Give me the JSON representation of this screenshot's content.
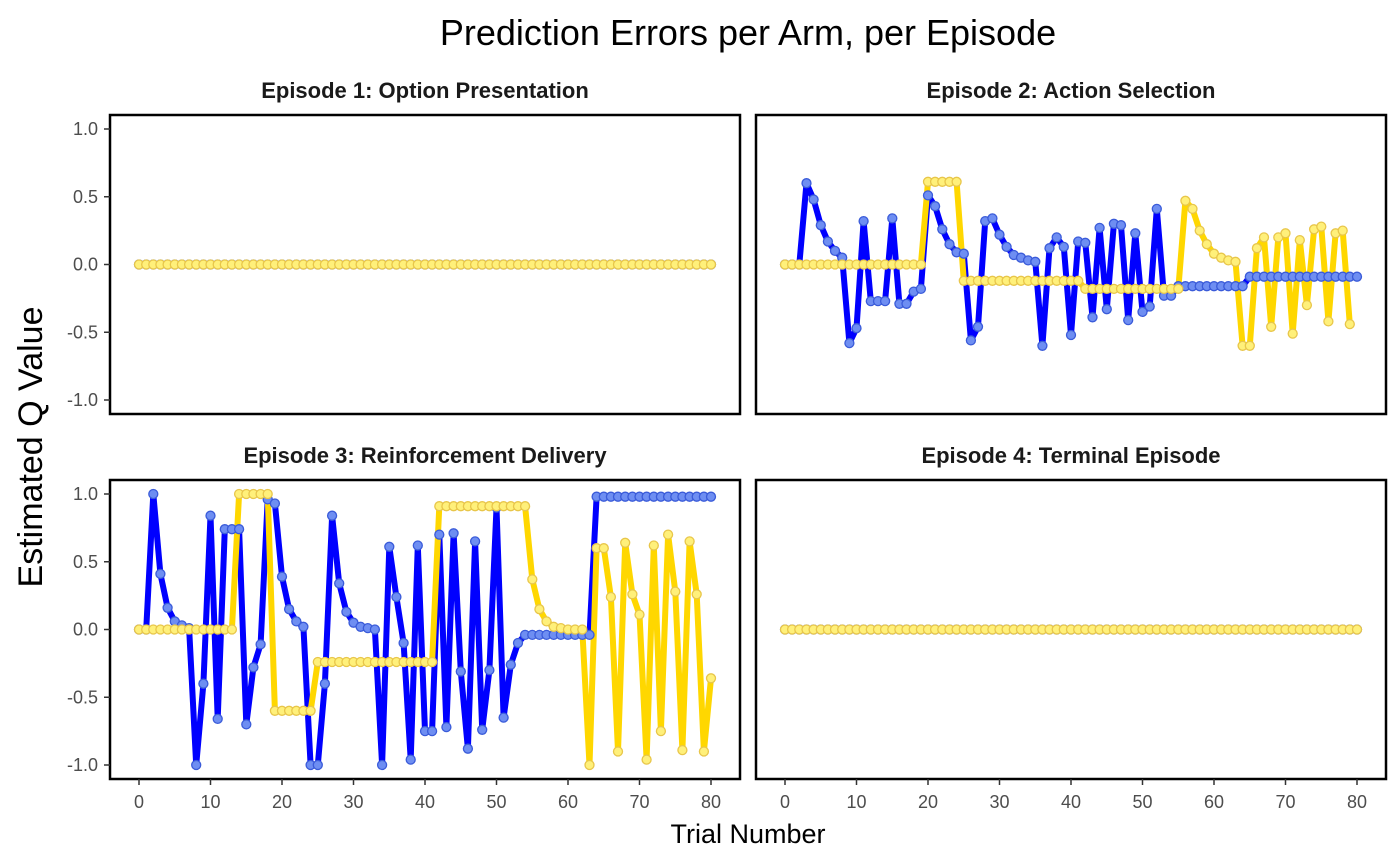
{
  "chart_data": {
    "type": "line",
    "title": "Prediction Errors per Arm, per Episode",
    "xlabel": "Trial Number",
    "ylabel": "Estimated Q Value",
    "xlim": [
      0,
      80
    ],
    "ylim": [
      -1,
      1
    ],
    "x_ticks": [
      0,
      10,
      20,
      30,
      40,
      50,
      60,
      70,
      80
    ],
    "y_ticks": [
      1.0,
      0.5,
      0.0,
      -0.5,
      -1.0
    ],
    "y_tick_labels": [
      "1.0",
      "0.5",
      "0.0",
      "-0.5",
      "-1.0"
    ],
    "grid": false,
    "legend": "none",
    "series_colors": {
      "arm1": "#0000FF",
      "arm2": "#FFD700"
    },
    "panels": [
      {
        "title": "Episode 1: Option Presentation",
        "series": [
          {
            "values": [
              0,
              0,
              0,
              0,
              0,
              0,
              0,
              0,
              0,
              0,
              0,
              0,
              0,
              0,
              0,
              0,
              0,
              0,
              0,
              0,
              0,
              0,
              0,
              0,
              0,
              0,
              0,
              0,
              0,
              0,
              0,
              0,
              0,
              0,
              0,
              0,
              0,
              0,
              0,
              0,
              0,
              0,
              0,
              0,
              0,
              0,
              0,
              0,
              0,
              0,
              0,
              0,
              0,
              0,
              0,
              0,
              0,
              0,
              0,
              0,
              0,
              0,
              0,
              0,
              0,
              0,
              0,
              0,
              0,
              0,
              0,
              0,
              0,
              0,
              0,
              0,
              0,
              0,
              0,
              0,
              0
            ]
          },
          {
            "values": [
              0,
              0,
              0,
              0,
              0,
              0,
              0,
              0,
              0,
              0,
              0,
              0,
              0,
              0,
              0,
              0,
              0,
              0,
              0,
              0,
              0,
              0,
              0,
              0,
              0,
              0,
              0,
              0,
              0,
              0,
              0,
              0,
              0,
              0,
              0,
              0,
              0,
              0,
              0,
              0,
              0,
              0,
              0,
              0,
              0,
              0,
              0,
              0,
              0,
              0,
              0,
              0,
              0,
              0,
              0,
              0,
              0,
              0,
              0,
              0,
              0,
              0,
              0,
              0,
              0,
              0,
              0,
              0,
              0,
              0,
              0,
              0,
              0,
              0,
              0,
              0,
              0,
              0,
              0,
              0,
              0
            ]
          }
        ]
      },
      {
        "title": "Episode 2: Action Selection",
        "series": [
          {
            "values": [
              0,
              0,
              0,
              0.6,
              0.48,
              0.29,
              0.17,
              0.1,
              0.05,
              -0.58,
              -0.47,
              0.32,
              -0.27,
              -0.27,
              -0.27,
              0.34,
              -0.29,
              -0.29,
              -0.2,
              -0.18,
              0.51,
              0.43,
              0.26,
              0.15,
              0.09,
              0.08,
              -0.56,
              -0.46,
              0.32,
              0.34,
              0.22,
              0.13,
              0.07,
              0.05,
              0.03,
              0.02,
              -0.6,
              0.12,
              0.2,
              0.13,
              -0.52,
              0.17,
              0.16,
              -0.39,
              0.27,
              -0.33,
              0.3,
              0.29,
              -0.41,
              0.23,
              -0.35,
              -0.31,
              0.41,
              -0.23,
              -0.23,
              -0.16,
              -0.16,
              -0.16,
              -0.16,
              -0.16,
              -0.16,
              -0.16,
              -0.16,
              -0.16,
              -0.16,
              -0.09,
              -0.09,
              -0.09,
              -0.09,
              -0.09,
              -0.09,
              -0.09,
              -0.09,
              -0.09,
              -0.09,
              -0.09,
              -0.09,
              -0.09,
              -0.09,
              -0.09,
              -0.09
            ]
          },
          {
            "values": [
              0,
              0,
              0,
              0,
              0,
              0,
              0,
              0,
              0,
              0,
              0,
              0,
              0,
              0,
              0,
              0,
              0,
              0,
              0,
              0,
              0.61,
              0.61,
              0.61,
              0.61,
              0.61,
              -0.12,
              -0.12,
              -0.12,
              -0.12,
              -0.12,
              -0.12,
              -0.12,
              -0.12,
              -0.12,
              -0.12,
              -0.12,
              -0.12,
              -0.12,
              -0.12,
              -0.12,
              -0.12,
              -0.12,
              -0.18,
              -0.18,
              -0.18,
              -0.18,
              -0.18,
              -0.18,
              -0.18,
              -0.18,
              -0.18,
              -0.18,
              -0.18,
              -0.18,
              -0.18,
              -0.18,
              0.47,
              0.41,
              0.25,
              0.15,
              0.08,
              0.05,
              0.03,
              0.02,
              -0.6,
              -0.6,
              0.12,
              0.2,
              -0.46,
              0.2,
              0.23,
              -0.51,
              0.18,
              -0.3,
              0.26,
              0.28,
              -0.42,
              0.23,
              0.25,
              -0.44
            ]
          }
        ]
      },
      {
        "title": "Episode 3: Reinforcement Delivery",
        "series": [
          {
            "values": [
              0,
              0,
              1.0,
              0.41,
              0.16,
              0.06,
              0.03,
              0.01,
              -1.0,
              -0.4,
              0.84,
              -0.66,
              0.74,
              0.74,
              0.74,
              -0.7,
              -0.28,
              -0.11,
              0.96,
              0.93,
              0.39,
              0.15,
              0.06,
              0.02,
              -1.0,
              -1.0,
              -0.4,
              0.84,
              0.34,
              0.13,
              0.05,
              0.02,
              0.01,
              0.0,
              -1.0,
              0.61,
              0.24,
              -0.1,
              -0.96,
              0.62,
              -0.75,
              -0.75,
              0.7,
              -0.72,
              0.71,
              -0.31,
              -0.88,
              0.65,
              -0.74,
              -0.3,
              0.9,
              -0.65,
              -0.26,
              -0.1,
              -0.04,
              -0.04,
              -0.04,
              -0.04,
              -0.04,
              -0.04,
              -0.04,
              -0.04,
              -0.04,
              -0.04,
              0.98,
              0.98,
              0.98,
              0.98,
              0.98,
              0.98,
              0.98,
              0.98,
              0.98,
              0.98,
              0.98,
              0.98,
              0.98,
              0.98,
              0.98,
              0.98,
              0.98
            ]
          },
          {
            "values": [
              0,
              0,
              0,
              0,
              0,
              0,
              0,
              0,
              0,
              0,
              0,
              0,
              0,
              0,
              1.0,
              1.0,
              1.0,
              1.0,
              1.0,
              -0.6,
              -0.6,
              -0.6,
              -0.6,
              -0.6,
              -0.6,
              -0.24,
              -0.24,
              -0.24,
              -0.24,
              -0.24,
              -0.24,
              -0.24,
              -0.24,
              -0.24,
              -0.24,
              -0.24,
              -0.24,
              -0.24,
              -0.24,
              -0.24,
              -0.24,
              -0.24,
              0.91,
              0.91,
              0.91,
              0.91,
              0.91,
              0.91,
              0.91,
              0.91,
              0.91,
              0.91,
              0.91,
              0.91,
              0.91,
              0.37,
              0.15,
              0.06,
              0.02,
              0.01,
              0.0,
              0.0,
              0.0,
              -1.0,
              0.6,
              0.6,
              0.24,
              -0.9,
              0.64,
              0.26,
              0.11,
              -0.96,
              0.62,
              -0.75,
              0.7,
              0.28,
              -0.89,
              0.65,
              0.26,
              -0.9,
              -0.36
            ]
          }
        ]
      },
      {
        "title": "Episode 4: Terminal Episode",
        "series": [
          {
            "values": [
              0,
              0,
              0,
              0,
              0,
              0,
              0,
              0,
              0,
              0,
              0,
              0,
              0,
              0,
              0,
              0,
              0,
              0,
              0,
              0,
              0,
              0,
              0,
              0,
              0,
              0,
              0,
              0,
              0,
              0,
              0,
              0,
              0,
              0,
              0,
              0,
              0,
              0,
              0,
              0,
              0,
              0,
              0,
              0,
              0,
              0,
              0,
              0,
              0,
              0,
              0,
              0,
              0,
              0,
              0,
              0,
              0,
              0,
              0,
              0,
              0,
              0,
              0,
              0,
              0,
              0,
              0,
              0,
              0,
              0,
              0,
              0,
              0,
              0,
              0,
              0,
              0,
              0,
              0,
              0,
              0
            ]
          },
          {
            "values": [
              0,
              0,
              0,
              0,
              0,
              0,
              0,
              0,
              0,
              0,
              0,
              0,
              0,
              0,
              0,
              0,
              0,
              0,
              0,
              0,
              0,
              0,
              0,
              0,
              0,
              0,
              0,
              0,
              0,
              0,
              0,
              0,
              0,
              0,
              0,
              0,
              0,
              0,
              0,
              0,
              0,
              0,
              0,
              0,
              0,
              0,
              0,
              0,
              0,
              0,
              0,
              0,
              0,
              0,
              0,
              0,
              0,
              0,
              0,
              0,
              0,
              0,
              0,
              0,
              0,
              0,
              0,
              0,
              0,
              0,
              0,
              0,
              0,
              0,
              0,
              0,
              0,
              0,
              0,
              0,
              0
            ]
          }
        ]
      }
    ]
  }
}
